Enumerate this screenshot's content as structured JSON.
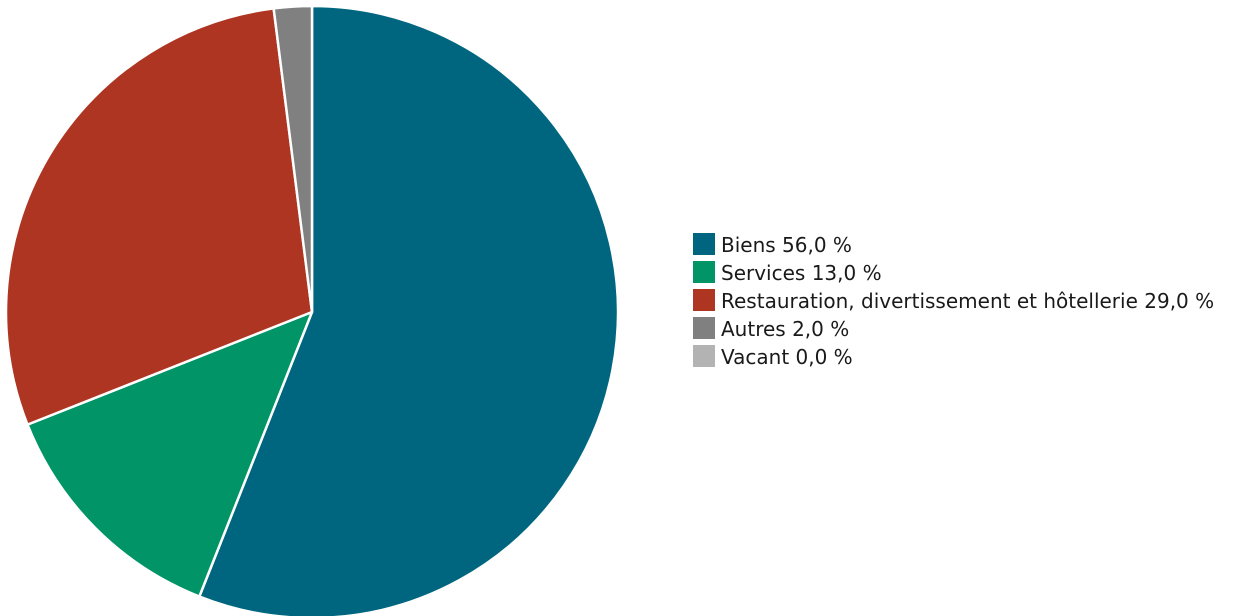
{
  "chart_data": {
    "type": "pie",
    "title": "",
    "categories": [
      "Biens",
      "Services",
      "Restauration, divertissement et hôtellerie",
      "Autres",
      "Vacant"
    ],
    "values": [
      56.0,
      13.0,
      29.0,
      2.0,
      0.0
    ],
    "unit": "%",
    "colors": [
      "#006680",
      "#009466",
      "#ad3521",
      "#808080",
      "#b3b3b3"
    ],
    "start_angle_deg": 0,
    "direction": "clockwise",
    "legend_position": "right",
    "legend": [
      {
        "label": "Biens 56,0 %",
        "color": "#006680"
      },
      {
        "label": "Services 13,0 %",
        "color": "#009466"
      },
      {
        "label": "Restauration, divertissement et hôtellerie 29,0 %",
        "color": "#ad3521"
      },
      {
        "label": "Autres 2,0 %",
        "color": "#808080"
      },
      {
        "label": "Vacant 0,0 %",
        "color": "#b3b3b3"
      }
    ]
  }
}
